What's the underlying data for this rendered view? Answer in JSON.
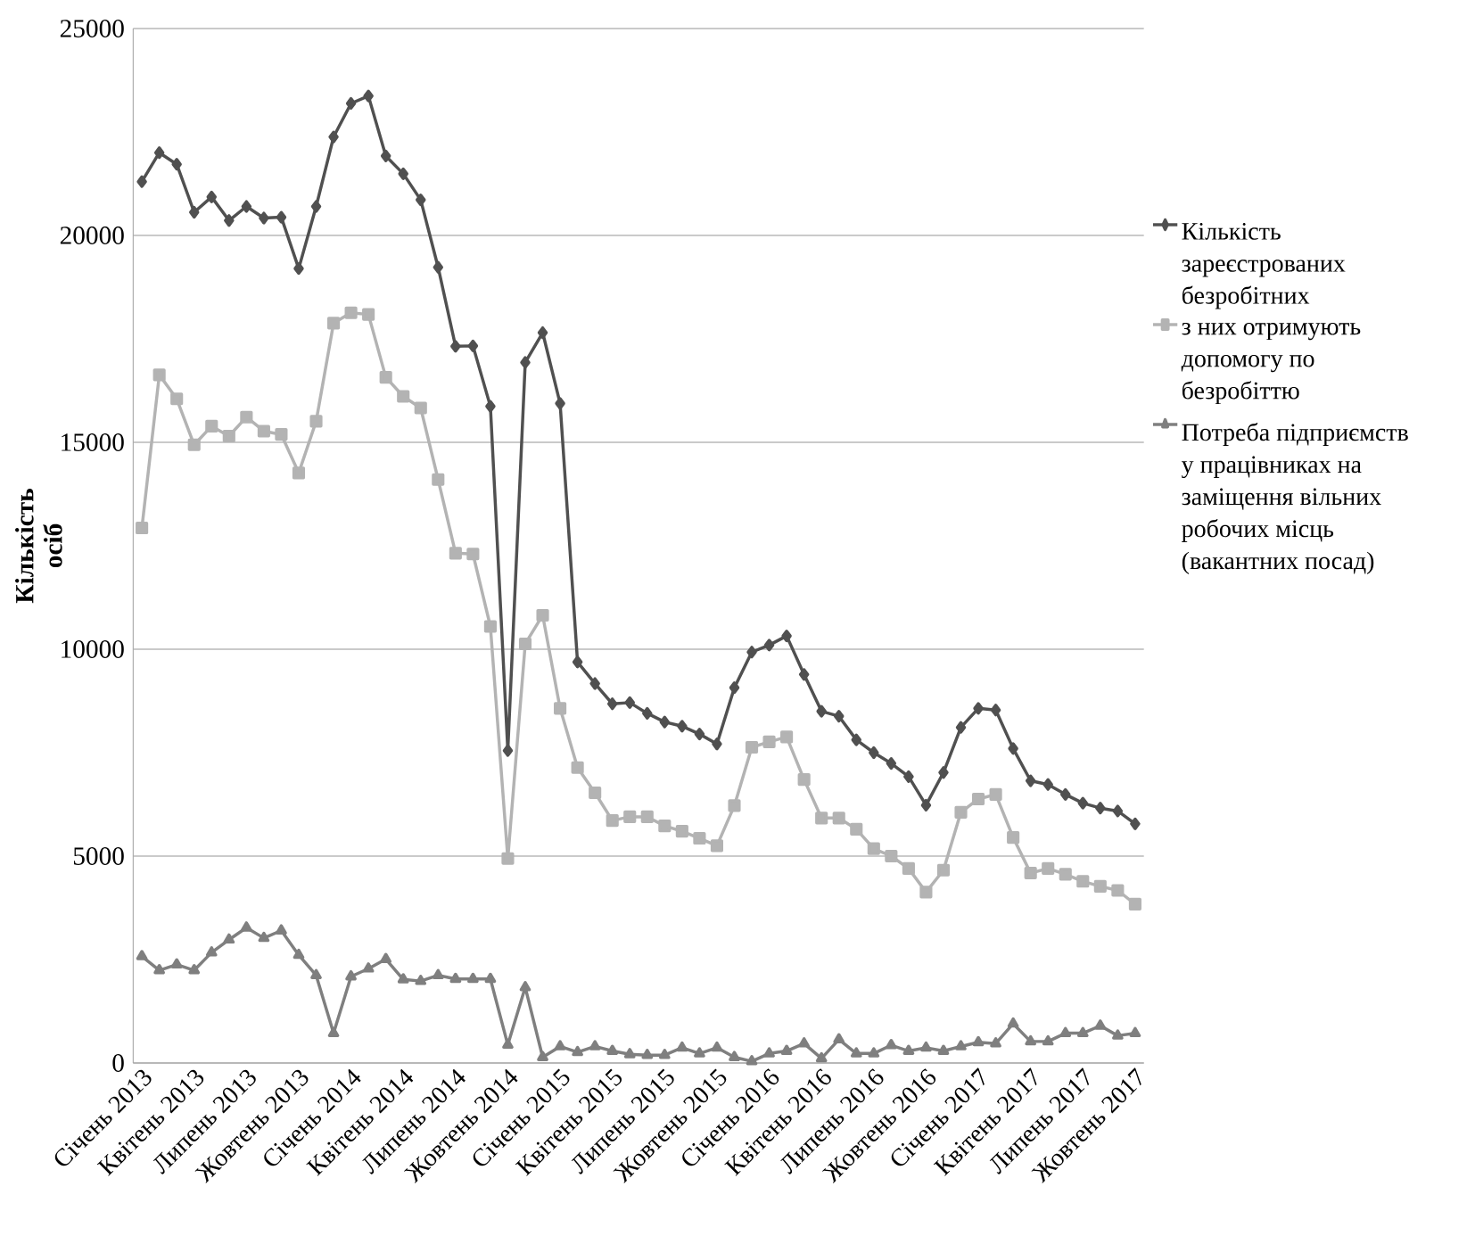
{
  "chart_data": {
    "type": "line",
    "ylabel": "Кількість осіб",
    "categories": [
      "Січень 2013",
      null,
      null,
      "Квітень 2013",
      null,
      null,
      "Липень 2013",
      null,
      null,
      "Жовтень 2013",
      null,
      null,
      "Січень 2014",
      null,
      null,
      "Квітень 2014",
      null,
      null,
      "Липень 2014",
      null,
      null,
      "Жовтень 2014",
      null,
      null,
      "Січень 2015",
      null,
      null,
      "Квітень 2015",
      null,
      null,
      "Липень 2015",
      null,
      null,
      "Жовтень 2015",
      null,
      null,
      "Січень 2016",
      null,
      null,
      "Квітень 2016",
      null,
      null,
      "Липень 2016",
      null,
      null,
      "Жовтень 2016",
      null,
      null,
      "Січень 2017",
      null,
      null,
      "Квітень 2017",
      null,
      null,
      "Липень 2017",
      null,
      null,
      "Жовтень 2017"
    ],
    "series": [
      {
        "name": "Кількість зареєстрованих безробітних",
        "color": "#505050",
        "marker": "diamond",
        "values": [
          21300,
          22000,
          21720,
          20560,
          20930,
          20360,
          20700,
          20420,
          20440,
          19200,
          20700,
          22380,
          23190,
          23370,
          21920,
          21490,
          20860,
          19230,
          17320,
          17330,
          15870,
          7550,
          16930,
          17650,
          15940,
          9690,
          9170,
          8680,
          8710,
          8450,
          8240,
          8140,
          7950,
          7710,
          9070,
          9930,
          10100,
          10320,
          9390,
          8500,
          8380,
          7810,
          7500,
          7240,
          6920,
          6230,
          7020,
          8110,
          8570,
          8530,
          7600,
          6820,
          6730,
          6490,
          6280,
          6160,
          6090,
          5780
        ]
      },
      {
        "name": "з них отримують допомогу по безробіттю",
        "color": "#b3b3b3",
        "marker": "square",
        "values": [
          12930,
          16630,
          16050,
          14940,
          15390,
          15150,
          15610,
          15270,
          15190,
          14260,
          15510,
          17880,
          18130,
          18090,
          16570,
          16110,
          15830,
          14100,
          12320,
          12300,
          10550,
          4940,
          10130,
          10820,
          8570,
          7140,
          6530,
          5860,
          5950,
          5950,
          5730,
          5600,
          5430,
          5250,
          6220,
          7630,
          7760,
          7880,
          6850,
          5920,
          5920,
          5650,
          5180,
          5000,
          4700,
          4130,
          4660,
          6060,
          6380,
          6490,
          5450,
          4590,
          4700,
          4560,
          4390,
          4270,
          4170,
          3840
        ]
      },
      {
        "name": "Потреба підприємств у працівниках на заміщення вільних робочих місць (вакантних посад)",
        "color": "#7f7f7f",
        "marker": "triangle",
        "values": [
          2580,
          2240,
          2380,
          2240,
          2670,
          2980,
          3270,
          3020,
          3200,
          2610,
          2120,
          720,
          2090,
          2280,
          2510,
          2020,
          1980,
          2120,
          2030,
          2030,
          2030,
          440,
          1830,
          140,
          400,
          260,
          400,
          290,
          210,
          190,
          190,
          370,
          230,
          370,
          140,
          40,
          230,
          290,
          470,
          110,
          570,
          230,
          230,
          430,
          290,
          370,
          290,
          400,
          500,
          470,
          950,
          520,
          520,
          720,
          720,
          900,
          660,
          720
        ]
      }
    ],
    "ylim": [
      0,
      25000
    ],
    "yticks": [
      0,
      5000,
      10000,
      15000,
      20000,
      25000
    ],
    "grid": "y",
    "legend": "right"
  }
}
